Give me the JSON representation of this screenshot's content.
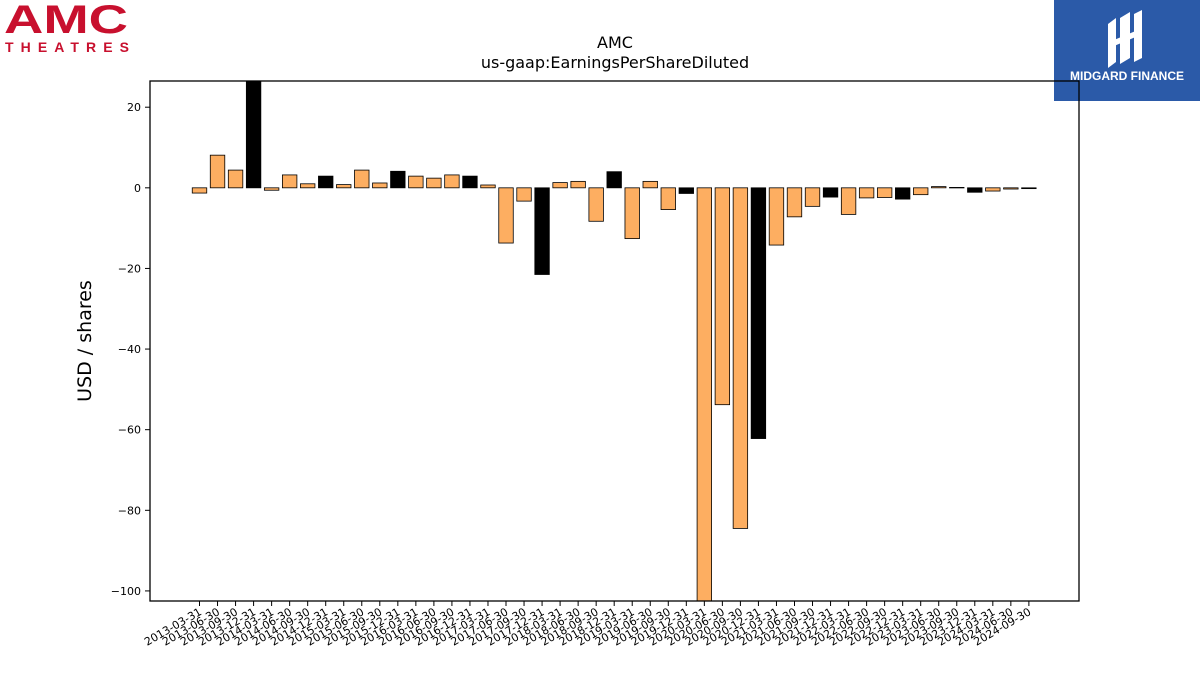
{
  "logos": {
    "left_brand": "AMC",
    "left_sub": "THEATRES",
    "right_brand": "MIDGARD FINANCE",
    "amc_color": "#c8102e",
    "midgard_bg": "#2b5aa8"
  },
  "chart_data": {
    "type": "bar",
    "title": "AMC",
    "subtitle": "us-gaap:EarningsPerShareDiluted",
    "xlabel": "",
    "ylabel": "USD / shares",
    "ylim": [
      -102.5,
      26.5
    ],
    "yticks": [
      20,
      0,
      -20,
      -40,
      -60,
      -80,
      -100
    ],
    "ytick_labels": [
      "20",
      "0",
      "−20",
      "−40",
      "−60",
      "−80",
      "−100"
    ],
    "grid": false,
    "legend": "none",
    "colors": {
      "quarter": "#fdae61",
      "annual": "#000000"
    },
    "categories": [
      "2013-03-31",
      "2013-06-30",
      "2013-09-30",
      "2013-12-31",
      "2014-03-31",
      "2014-06-30",
      "2014-09-30",
      "2014-12-31",
      "2015-03-31",
      "2015-06-30",
      "2015-09-30",
      "2015-12-31",
      "2016-03-31",
      "2016-06-30",
      "2016-09-30",
      "2016-12-31",
      "2017-03-31",
      "2017-06-30",
      "2017-09-30",
      "2017-12-31",
      "2018-03-31",
      "2018-06-30",
      "2018-09-30",
      "2018-12-31",
      "2019-03-31",
      "2019-06-30",
      "2019-09-30",
      "2019-12-31",
      "2020-03-31",
      "2020-06-30",
      "2020-09-30",
      "2020-12-31",
      "2021-03-31",
      "2021-06-30",
      "2021-09-30",
      "2021-12-31",
      "2022-03-31",
      "2022-06-30",
      "2022-09-30",
      "2022-12-31",
      "2023-03-31",
      "2023-06-30",
      "2023-09-30",
      "2023-12-31",
      "2024-03-31",
      "2024-06-30",
      "2024-09-30"
    ],
    "values": [
      -1.3,
      8.1,
      4.4,
      26.5,
      -0.6,
      3.2,
      1.0,
      2.9,
      0.8,
      4.4,
      1.2,
      4.1,
      2.9,
      2.4,
      3.2,
      2.9,
      0.7,
      -13.7,
      -3.3,
      -21.5,
      1.3,
      1.6,
      -8.3,
      4.0,
      -12.6,
      1.6,
      -5.4,
      -1.4,
      -102.5,
      -53.8,
      -84.5,
      -62.2,
      -14.2,
      -7.2,
      -4.6,
      -2.3,
      -6.6,
      -2.5,
      -2.4,
      -2.8,
      -1.7,
      0.3,
      0.1,
      -1.1,
      -0.8,
      -0.3,
      -0.2
    ],
    "is_annual": [
      false,
      false,
      false,
      true,
      false,
      false,
      false,
      true,
      false,
      false,
      false,
      true,
      false,
      false,
      false,
      true,
      false,
      false,
      false,
      true,
      false,
      false,
      false,
      true,
      false,
      false,
      false,
      true,
      false,
      false,
      false,
      true,
      false,
      false,
      false,
      true,
      false,
      false,
      false,
      true,
      false,
      false,
      false,
      true,
      false,
      false,
      false
    ]
  }
}
